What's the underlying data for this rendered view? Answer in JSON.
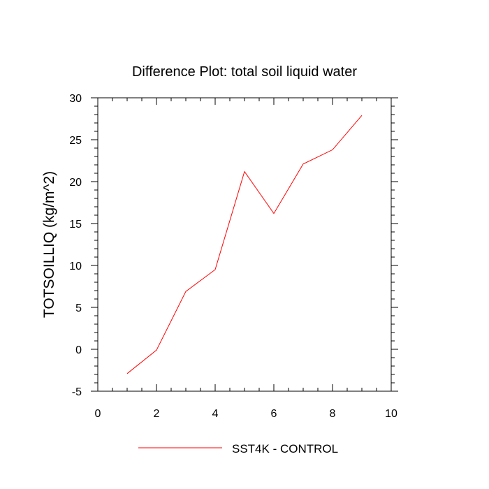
{
  "chart_data": {
    "type": "line",
    "title": "Difference Plot: total soil liquid water",
    "xlabel": "",
    "ylabel": "TOTSOILLIQ  (kg/m^2)",
    "xlim": [
      0,
      10
    ],
    "ylim": [
      -5,
      30
    ],
    "x_ticks": [
      0,
      2,
      4,
      6,
      8,
      10
    ],
    "x_tick_labels": [
      "0",
      "2",
      "4",
      "6",
      "8",
      "10"
    ],
    "y_ticks": [
      -5,
      0,
      5,
      10,
      15,
      20,
      25,
      30
    ],
    "y_tick_labels": [
      "-5",
      "0",
      "5",
      "10",
      "15",
      "20",
      "25",
      "30"
    ],
    "grid": false,
    "legend_position": "bottom",
    "series": [
      {
        "name": "SST4K - CONTROL",
        "color": "#ff0000",
        "x": [
          1,
          2,
          3,
          4,
          5,
          6,
          7,
          8,
          9
        ],
        "values": [
          -2.9,
          -0.1,
          6.9,
          9.5,
          21.2,
          16.2,
          22.1,
          23.8,
          27.9
        ]
      }
    ]
  }
}
